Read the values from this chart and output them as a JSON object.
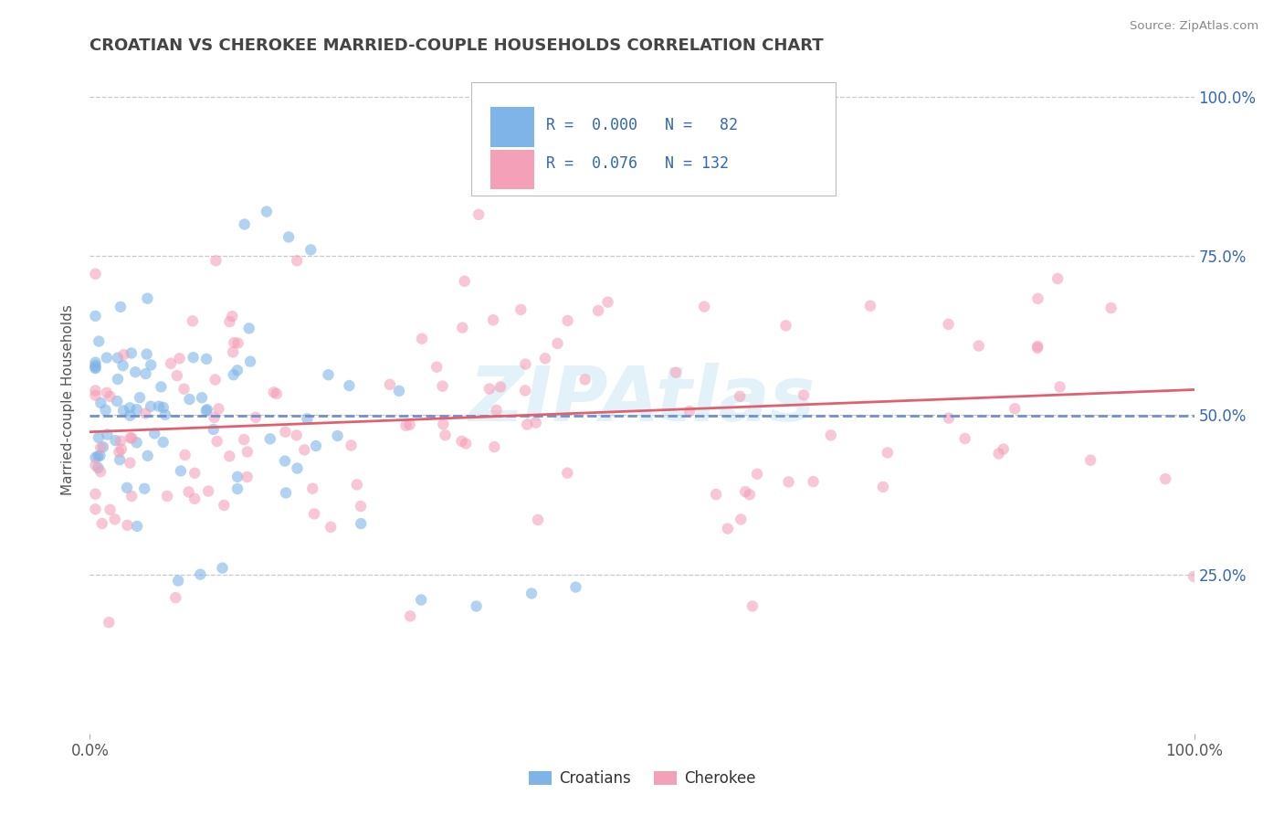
{
  "title": "CROATIAN VS CHEROKEE MARRIED-COUPLE HOUSEHOLDS CORRELATION CHART",
  "source": "Source: ZipAtlas.com",
  "ylabel": "Married-couple Households",
  "legend_label1": "Croatians",
  "legend_label2": "Cherokee",
  "R1": "0.000",
  "N1": "82",
  "R2": "0.076",
  "N2": "132",
  "watermark": "ZIPAtlas",
  "background_color": "#ffffff",
  "scatter_color1": "#7eb4e8",
  "scatter_color2": "#f4a0b8",
  "line_color1": "#7090d0",
  "line_color2": "#e06070",
  "grid_color": "#c8c8c8",
  "title_color": "#444444",
  "stat_color": "#3366bb",
  "tick_color": "#3366bb"
}
